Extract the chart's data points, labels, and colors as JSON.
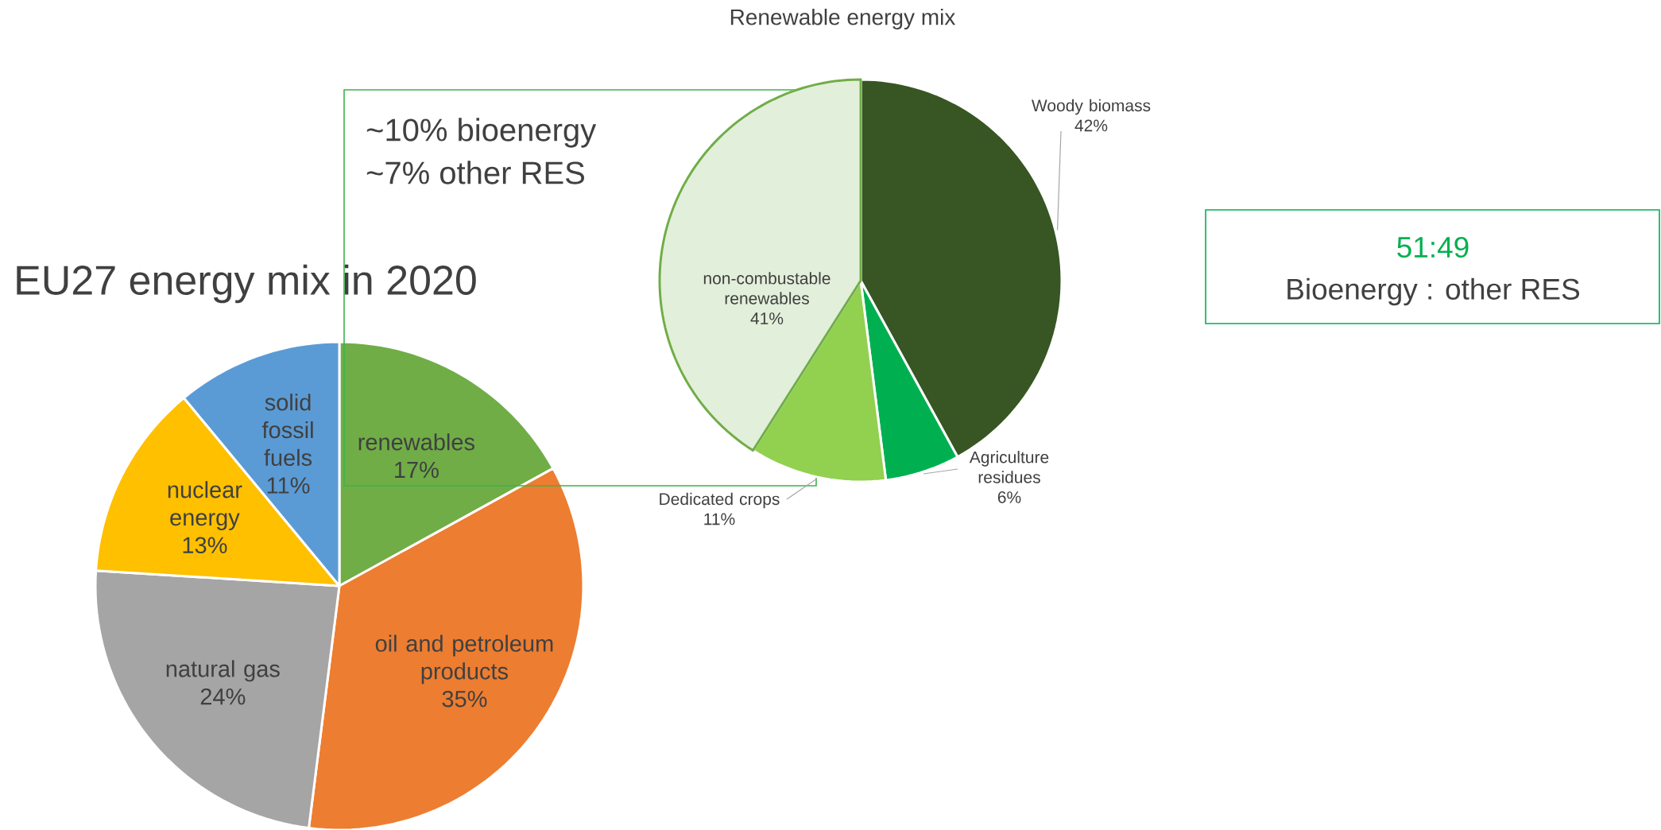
{
  "chart_data": [
    {
      "type": "pie",
      "title": "EU27 energy mix in 2020",
      "categories": [
        "renewables",
        "oil and petroleum products",
        "natural gas",
        "nuclear energy",
        "solid fossil fuels"
      ],
      "values": [
        17,
        35,
        24,
        13,
        11
      ],
      "value_labels": [
        "17%",
        "35%",
        "24%",
        "13%",
        "11%"
      ],
      "colors": [
        "#70ad47",
        "#ed7d31",
        "#a5a5a5",
        "#ffc000",
        "#5b9bd5"
      ],
      "annotations": [
        "~10% bioenergy",
        "~7% other RES"
      ]
    },
    {
      "type": "pie",
      "title": "Renewable energy mix",
      "categories": [
        "Woody biomass",
        "Agriculture residues",
        "Dedicated crops",
        "non-combustable renewables"
      ],
      "values": [
        42,
        6,
        11,
        41
      ],
      "value_labels": [
        "42%",
        "6%",
        "11%",
        "41%"
      ],
      "colors": [
        "#375623",
        "#00b050",
        "#92d050",
        "#e2efda"
      ],
      "annotations": [
        "51:49",
        "Bioenergy : other RES"
      ]
    }
  ]
}
